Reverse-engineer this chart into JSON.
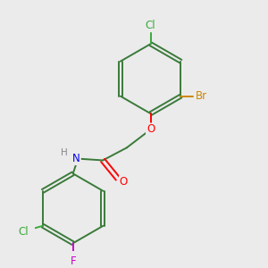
{
  "bg_color": "#ebebeb",
  "bond_color": "#3a7a3a",
  "atom_colors": {
    "Cl": "#3aaa3a",
    "Br": "#cc8800",
    "O": "#ff0000",
    "N": "#0000ee",
    "F": "#cc00cc",
    "C": "#3a7a3a",
    "H": "#888888"
  }
}
